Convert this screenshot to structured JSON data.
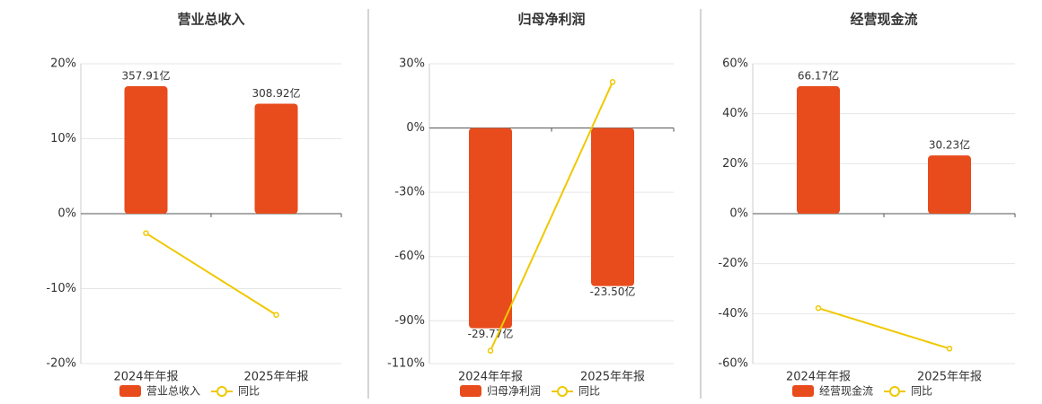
{
  "chart_data": [
    {
      "type": "bar",
      "title": "营业总收入",
      "categories": [
        "2024年年报",
        "2025年年报"
      ],
      "series": [
        {
          "name": "营业总收入",
          "type": "bar",
          "color": "#e84c1c",
          "values": [
            357.91,
            308.92
          ],
          "value_labels": [
            "357.91亿",
            "308.92亿"
          ]
        },
        {
          "name": "同比",
          "type": "line",
          "color": "#f0c800",
          "values": [
            -2.6,
            -13.5
          ]
        }
      ],
      "ylim": [
        -20,
        20
      ],
      "yticks": [
        {
          "value": 20,
          "label": "20%"
        },
        {
          "value": 10,
          "label": "10%"
        },
        {
          "value": 0,
          "label": "0%"
        },
        {
          "value": -10,
          "label": "-10%"
        },
        {
          "value": -20,
          "label": "-20%"
        }
      ],
      "grid": true
    },
    {
      "type": "bar",
      "title": "归母净利润",
      "categories": [
        "2024年年报",
        "2025年年报"
      ],
      "series": [
        {
          "name": "归母净利润",
          "type": "bar",
          "color": "#e84c1c",
          "values": [
            -29.77,
            -23.5
          ],
          "value_labels": [
            "-29.77亿",
            "-23.50亿"
          ]
        },
        {
          "name": "同比",
          "type": "line",
          "color": "#f0c800",
          "values": [
            -104,
            21.5
          ]
        }
      ],
      "ylim": [
        -110,
        30
      ],
      "yticks": [
        {
          "value": 30,
          "label": "30%"
        },
        {
          "value": 0,
          "label": "0%"
        },
        {
          "value": -30,
          "label": "-30%"
        },
        {
          "value": -60,
          "label": "-60%"
        },
        {
          "value": -90,
          "label": "-90%"
        },
        {
          "value": -110,
          "label": "-110%"
        }
      ],
      "grid": true
    },
    {
      "type": "bar",
      "title": "经营现金流",
      "categories": [
        "2024年年报",
        "2025年年报"
      ],
      "series": [
        {
          "name": "经营现金流",
          "type": "bar",
          "color": "#e84c1c",
          "values": [
            66.17,
            30.23
          ],
          "value_labels": [
            "66.17亿",
            "30.23亿"
          ]
        },
        {
          "name": "同比",
          "type": "line",
          "color": "#f0c800",
          "values": [
            -37.8,
            -54
          ]
        }
      ],
      "ylim": [
        -60,
        60
      ],
      "yticks": [
        {
          "value": 60,
          "label": "60%"
        },
        {
          "value": 40,
          "label": "40%"
        },
        {
          "value": 20,
          "label": "20%"
        },
        {
          "value": 0,
          "label": "0%"
        },
        {
          "value": -20,
          "label": "-20%"
        },
        {
          "value": -40,
          "label": "-40%"
        },
        {
          "value": -60,
          "label": "-60%"
        }
      ],
      "grid": true
    }
  ]
}
